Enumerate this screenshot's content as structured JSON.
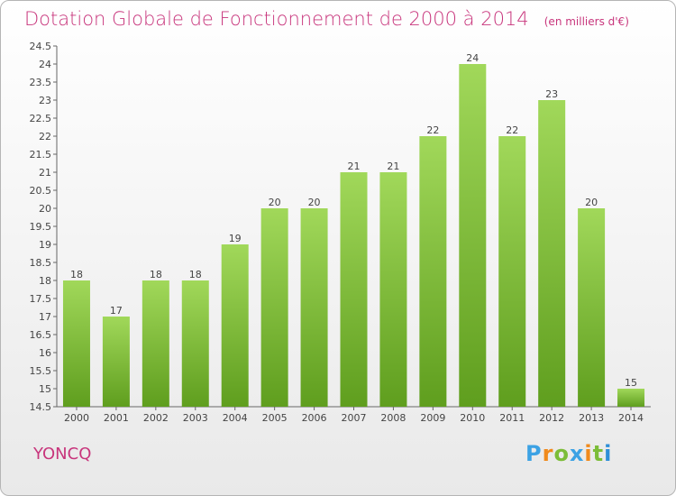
{
  "header": {
    "title": "Dotation Globale de Fonctionnement de 2000 à 2014",
    "subtitle": "(en milliers d'€)"
  },
  "footer": {
    "city": "YONCQ",
    "logo": "Proxiti"
  },
  "colors": {
    "title": "#c8357c",
    "bar_top": "#a1d85a",
    "bar_bottom": "#5f9e1e",
    "axis": "#666666"
  },
  "chart_data": {
    "type": "bar",
    "categories": [
      "2000",
      "2001",
      "2002",
      "2003",
      "2004",
      "2005",
      "2006",
      "2007",
      "2008",
      "2009",
      "2010",
      "2011",
      "2012",
      "2013",
      "2014"
    ],
    "values": [
      18,
      17,
      18,
      18,
      19,
      20,
      20,
      21,
      21,
      22,
      24,
      22,
      23,
      20,
      15
    ],
    "ylim": [
      14.5,
      24.5
    ],
    "yticks": [
      "24.5",
      "24",
      "23.5",
      "23",
      "22.5",
      "22",
      "21.5",
      "21",
      "20.5",
      "20",
      "19.5",
      "19",
      "18.5",
      "18",
      "17.5",
      "17",
      "16.5",
      "16",
      "15.5",
      "15",
      "14.5"
    ],
    "grid": false,
    "title": "Dotation Globale de Fonctionnement de 2000 à 2014",
    "xlabel": "",
    "ylabel": ""
  }
}
